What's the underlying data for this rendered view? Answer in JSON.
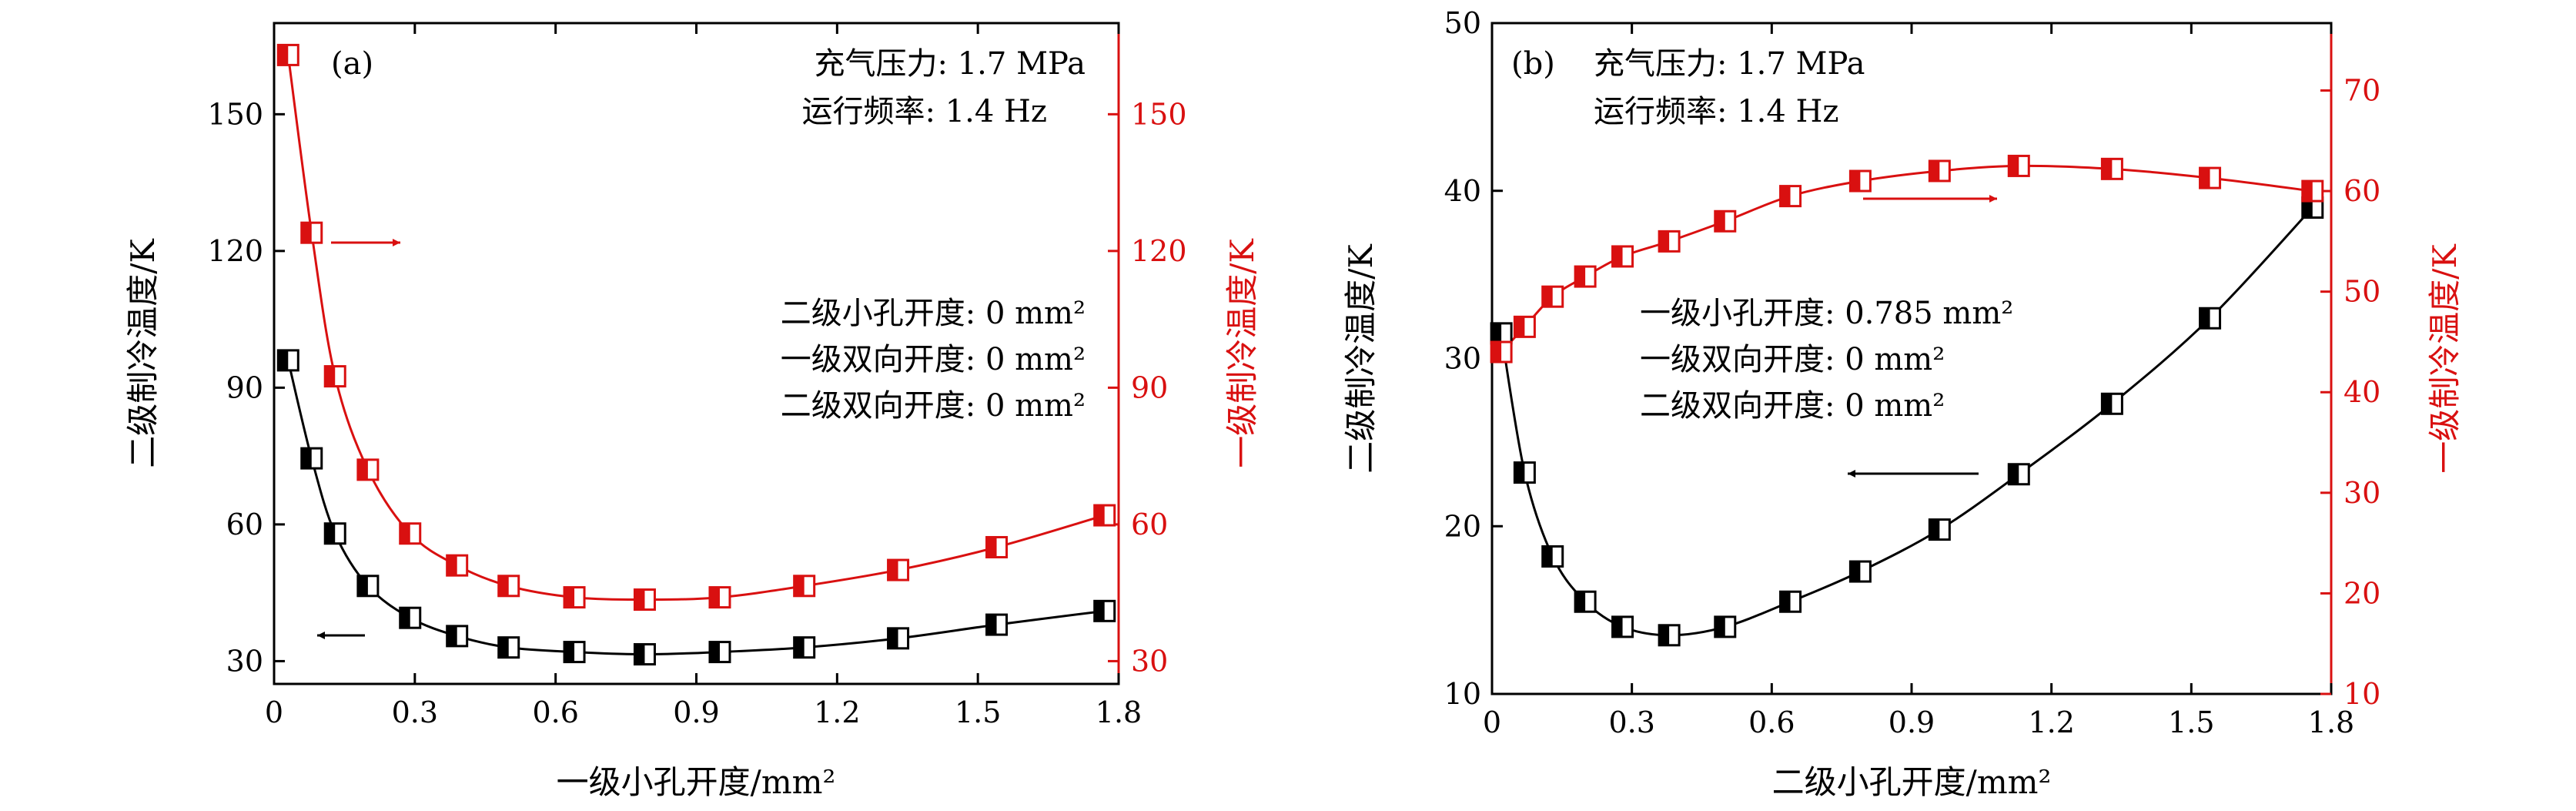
{
  "chart_data": [
    {
      "type": "scatter",
      "panel_label": "(a)",
      "xlabel": "一级小孔开度/mm²",
      "ylabel_left": "二级制冷温度/K",
      "ylabel_right": "一级制冷温度/K",
      "xlim": [
        0,
        1.8
      ],
      "ylim_left": [
        25,
        170
      ],
      "ylim_right": [
        25,
        170
      ],
      "xticks": [
        "0",
        "0.3",
        "0.6",
        "0.9",
        "1.2",
        "1.5",
        "1.8"
      ],
      "yticks_left": [
        "30",
        "60",
        "90",
        "120",
        "150"
      ],
      "yticks_right": [
        "30",
        "60",
        "90",
        "120",
        "150"
      ],
      "annotations": [
        "充气压力: 1.7 MPa",
        "运行频率: 1.4 Hz"
      ],
      "conditions": [
        "二级小孔开度: 0 mm²",
        "一级双向开度: 0 mm²",
        "二级双向开度: 0 mm²"
      ],
      "colors": {
        "left": "#000000",
        "right": "#d91010"
      },
      "series": [
        {
          "axis": "left",
          "marker": "half-filled-left",
          "x": [
            0.03,
            0.08,
            0.13,
            0.2,
            0.29,
            0.39,
            0.5,
            0.64,
            0.79,
            0.95,
            1.13,
            1.33,
            1.54,
            1.77
          ],
          "y": [
            96,
            74.5,
            58,
            46.5,
            39.5,
            35.5,
            33,
            32,
            31.5,
            32,
            33,
            35,
            38,
            41
          ]
        },
        {
          "axis": "right",
          "marker": "half-filled-left",
          "x": [
            0.03,
            0.08,
            0.13,
            0.2,
            0.29,
            0.39,
            0.5,
            0.64,
            0.79,
            0.95,
            1.13,
            1.33,
            1.54,
            1.77
          ],
          "y": [
            163,
            124,
            92.5,
            72,
            58,
            51,
            46.5,
            44,
            43.5,
            44,
            46.5,
            50,
            55,
            62
          ]
        }
      ]
    },
    {
      "type": "scatter",
      "panel_label": "(b)",
      "xlabel": "二级小孔开度/mm²",
      "ylabel_left": "二级制冷温度/K",
      "ylabel_right": "一级制冷温度/K",
      "xlim": [
        0,
        1.8
      ],
      "ylim_left": [
        10,
        50
      ],
      "ylim_right": [
        10,
        76.7
      ],
      "xticks": [
        "0",
        "0.3",
        "0.6",
        "0.9",
        "1.2",
        "1.5",
        "1.8"
      ],
      "yticks_left": [
        "10",
        "20",
        "30",
        "40",
        "50"
      ],
      "yticks_right": [
        "10",
        "20",
        "30",
        "40",
        "50",
        "60",
        "70"
      ],
      "annotations": [
        "充气压力: 1.7 MPa",
        "运行频率: 1.4 Hz"
      ],
      "conditions": [
        "一级小孔开度: 0.785 mm²",
        "一级双向开度: 0 mm²",
        "二级双向开度: 0 mm²"
      ],
      "colors": {
        "left": "#000000",
        "right": "#d91010"
      },
      "series": [
        {
          "axis": "left",
          "marker": "half-filled-left",
          "x": [
            0.02,
            0.07,
            0.13,
            0.2,
            0.28,
            0.38,
            0.5,
            0.64,
            0.79,
            0.96,
            1.13,
            1.33,
            1.54,
            1.76
          ],
          "y": [
            31.5,
            23.2,
            18.2,
            15.5,
            14,
            13.5,
            14,
            15.5,
            17.3,
            19.8,
            23.1,
            27.3,
            32.4,
            39
          ]
        },
        {
          "axis": "right",
          "marker": "half-filled-left",
          "x": [
            0.02,
            0.07,
            0.13,
            0.2,
            0.28,
            0.38,
            0.5,
            0.64,
            0.79,
            0.96,
            1.13,
            1.33,
            1.54,
            1.76
          ],
          "y": [
            44,
            46.5,
            49.5,
            51.5,
            53.5,
            55,
            57,
            59.5,
            61,
            62,
            62.5,
            62.2,
            61.3,
            60
          ]
        }
      ]
    }
  ]
}
